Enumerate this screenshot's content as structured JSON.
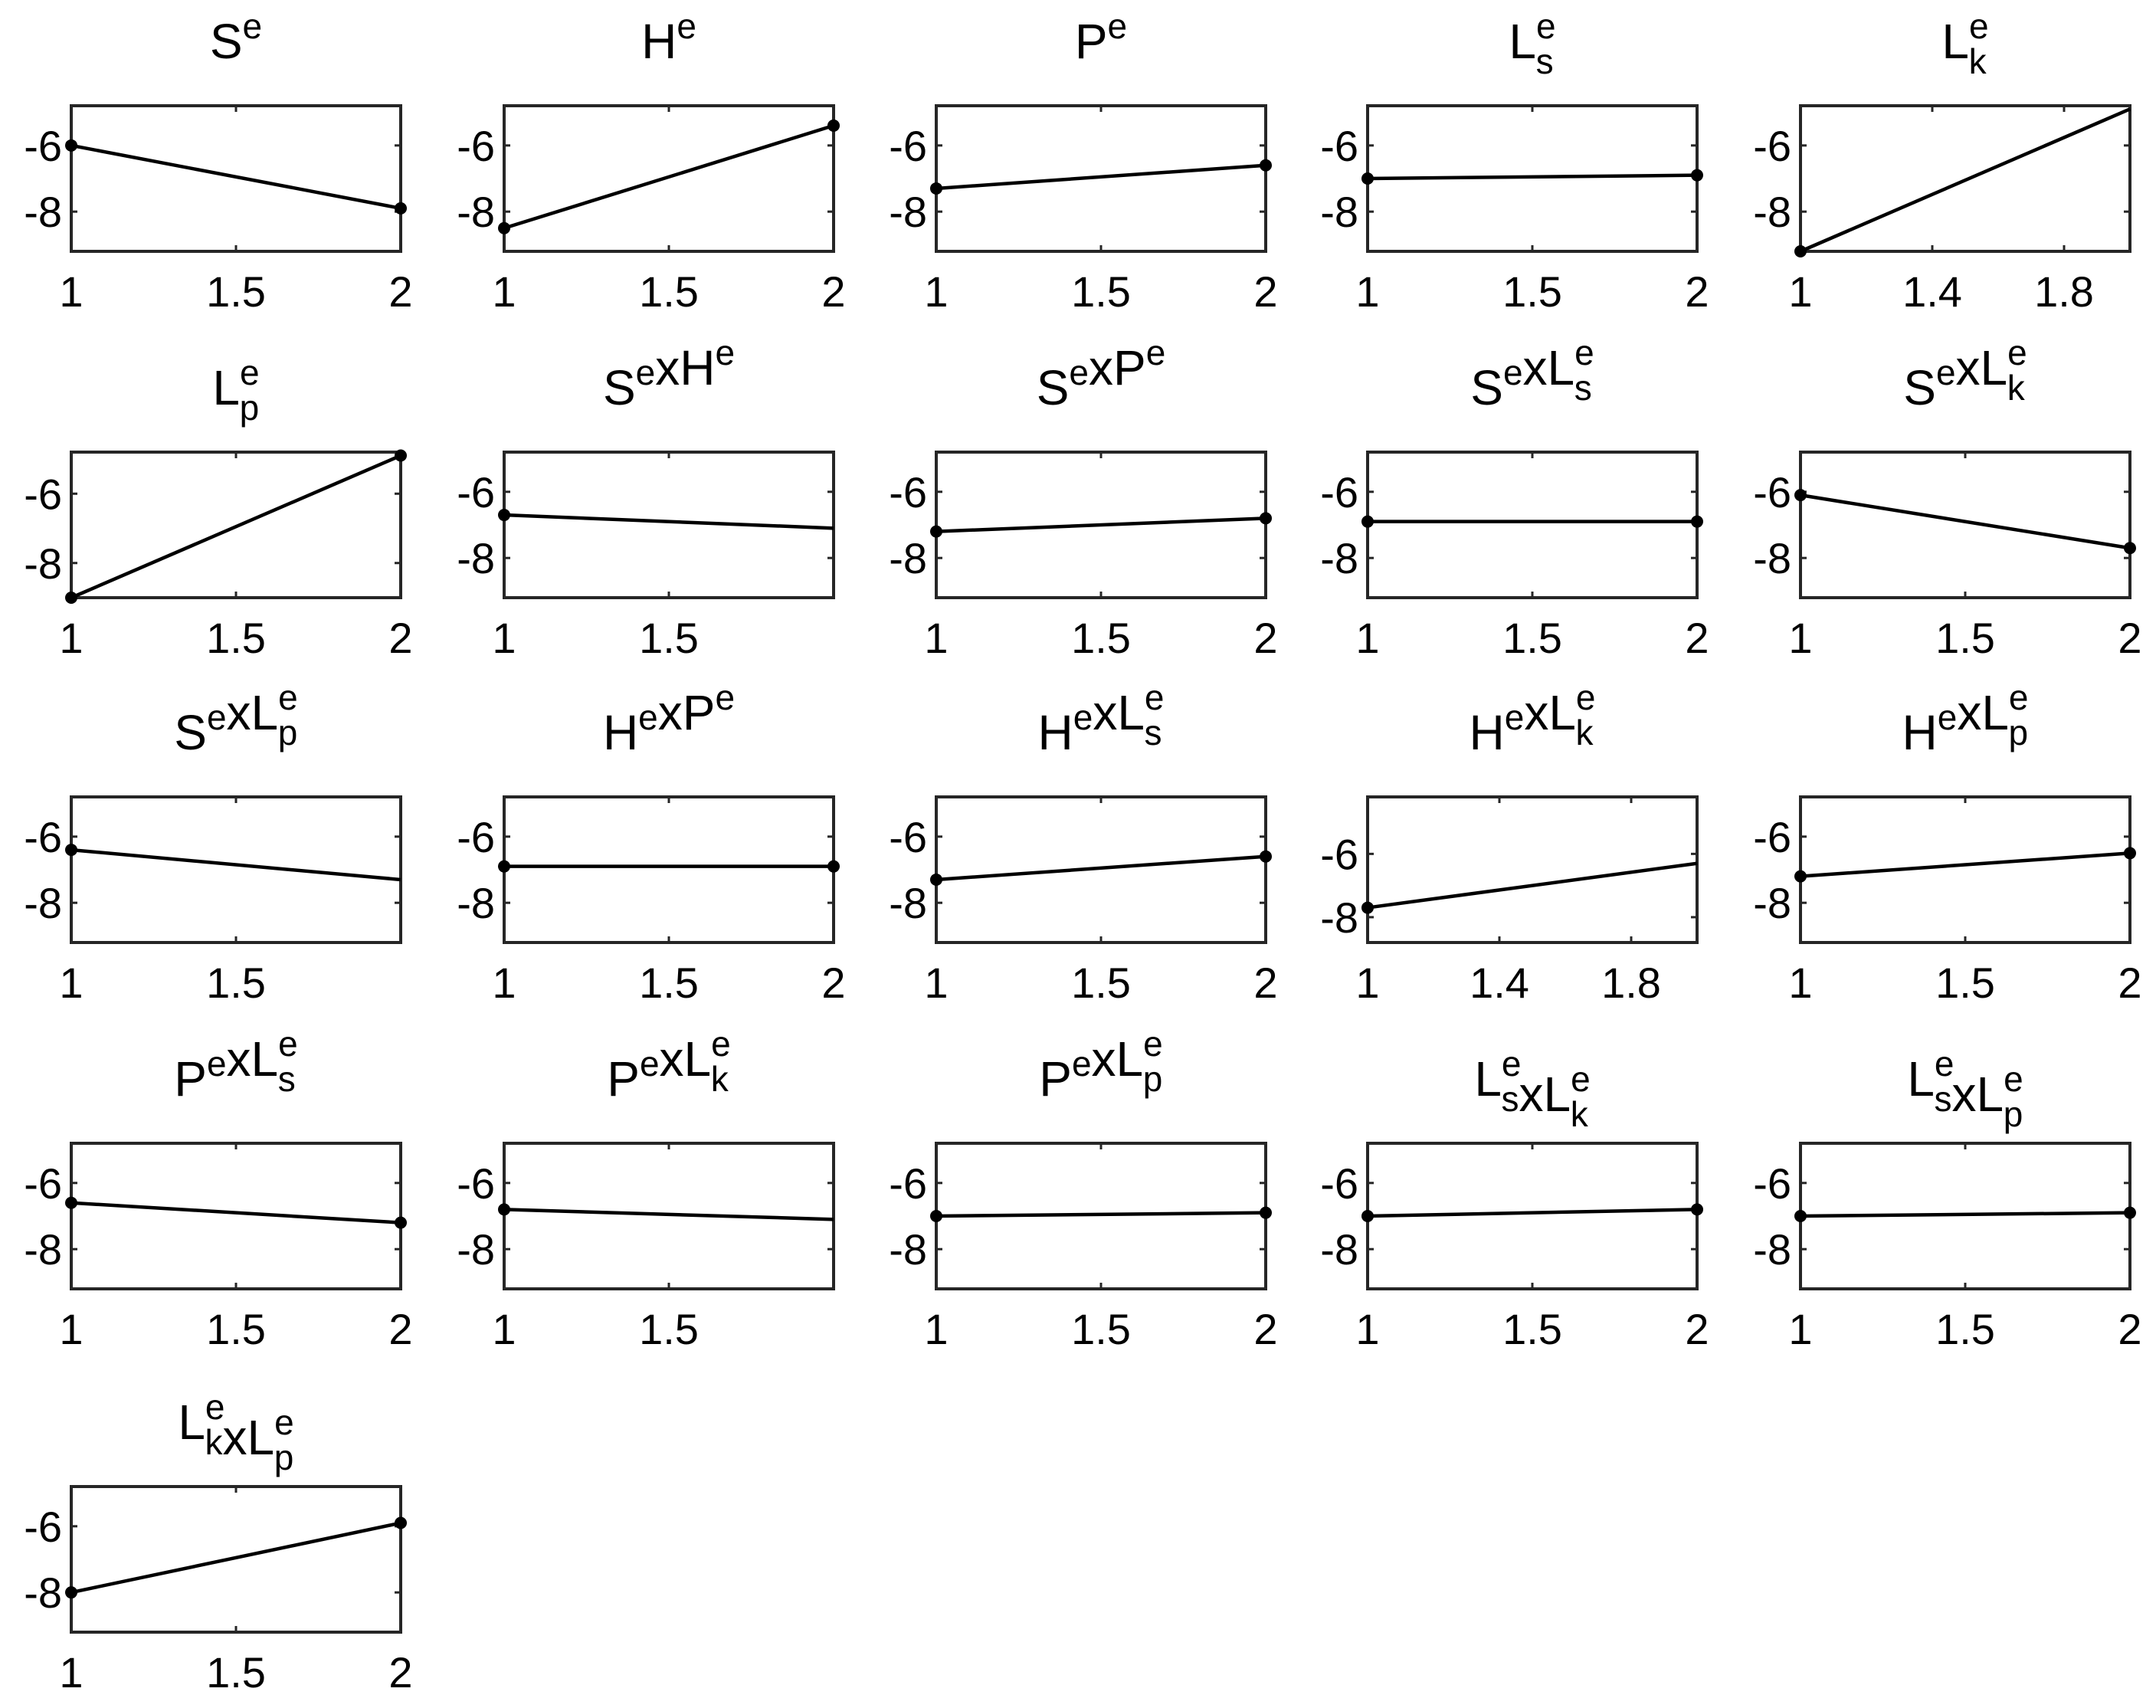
{
  "chart_data": [
    {
      "type": "line",
      "title": [
        [
          "S",
          "e",
          ""
        ]
      ],
      "x": [
        1,
        2
      ],
      "values": [
        -6.0,
        -7.9
      ],
      "xlim": [
        1,
        2
      ],
      "ylim": [
        -9.2,
        -4.8
      ],
      "xticks": [
        "1",
        "1.5",
        "2"
      ],
      "yticks": [
        "-6",
        "-8"
      ],
      "markers": [
        true,
        true
      ],
      "grid": false
    },
    {
      "type": "line",
      "title": [
        [
          "H",
          "e",
          ""
        ]
      ],
      "x": [
        1,
        2
      ],
      "values": [
        -8.5,
        -5.4
      ],
      "xlim": [
        1,
        2
      ],
      "ylim": [
        -9.2,
        -4.8
      ],
      "xticks": [
        "1",
        "1.5",
        "2"
      ],
      "yticks": [
        "-6",
        "-8"
      ],
      "markers": [
        true,
        true
      ],
      "grid": false
    },
    {
      "type": "line",
      "title": [
        [
          "P",
          "e",
          ""
        ]
      ],
      "x": [
        1,
        2
      ],
      "values": [
        -7.3,
        -6.6
      ],
      "xlim": [
        1,
        2
      ],
      "ylim": [
        -9.2,
        -4.8
      ],
      "xticks": [
        "1",
        "1.5",
        "2"
      ],
      "yticks": [
        "-6",
        "-8"
      ],
      "markers": [
        true,
        true
      ],
      "grid": false
    },
    {
      "type": "line",
      "title": [
        [
          "L",
          "e",
          "s"
        ]
      ],
      "x": [
        1,
        2
      ],
      "values": [
        -7.0,
        -6.9
      ],
      "xlim": [
        1,
        2
      ],
      "ylim": [
        -9.2,
        -4.8
      ],
      "xticks": [
        "1",
        "1.5",
        "2"
      ],
      "yticks": [
        "-6",
        "-8"
      ],
      "markers": [
        true,
        true
      ],
      "grid": false
    },
    {
      "type": "line",
      "title": [
        [
          "L",
          "e",
          "k"
        ]
      ],
      "x": [
        1,
        2
      ],
      "values": [
        -9.2,
        -4.9
      ],
      "xlim": [
        1,
        2
      ],
      "ylim": [
        -9.2,
        -4.8
      ],
      "xticks": [
        "1",
        "1.4",
        "1.8"
      ],
      "yticks": [
        "-6",
        "-8"
      ],
      "markers": [
        true,
        false
      ],
      "grid": false
    },
    {
      "type": "line",
      "title": [
        [
          "L",
          "e",
          "p"
        ]
      ],
      "x": [
        1,
        2
      ],
      "values": [
        -9.0,
        -4.9
      ],
      "xlim": [
        1,
        2
      ],
      "ylim": [
        -9.0,
        -4.8
      ],
      "xticks": [
        "1",
        "1.5",
        "2"
      ],
      "yticks": [
        "-6",
        "-8"
      ],
      "markers": [
        true,
        true
      ],
      "grid": false
    },
    {
      "type": "line",
      "title": [
        [
          "S",
          "e",
          ""
        ],
        [
          "xH",
          "e",
          ""
        ]
      ],
      "x": [
        1,
        2
      ],
      "values": [
        -6.7,
        -7.1
      ],
      "xlim": [
        1,
        2
      ],
      "ylim": [
        -9.2,
        -4.8
      ],
      "xticks": [
        "1",
        "1.5"
      ],
      "yticks": [
        "-6",
        "-8"
      ],
      "markers": [
        true,
        false
      ],
      "grid": false
    },
    {
      "type": "line",
      "title": [
        [
          "S",
          "e",
          ""
        ],
        [
          "xP",
          "e",
          ""
        ]
      ],
      "x": [
        1,
        2
      ],
      "values": [
        -7.2,
        -6.8
      ],
      "xlim": [
        1,
        2
      ],
      "ylim": [
        -9.2,
        -4.8
      ],
      "xticks": [
        "1",
        "1.5",
        "2"
      ],
      "yticks": [
        "-6",
        "-8"
      ],
      "markers": [
        true,
        true
      ],
      "grid": false
    },
    {
      "type": "line",
      "title": [
        [
          "S",
          "e",
          ""
        ],
        [
          "xL",
          "e",
          "s"
        ]
      ],
      "x": [
        1,
        2
      ],
      "values": [
        -6.9,
        -6.9
      ],
      "xlim": [
        1,
        2
      ],
      "ylim": [
        -9.2,
        -4.8
      ],
      "xticks": [
        "1",
        "1.5",
        "2"
      ],
      "yticks": [
        "-6",
        "-8"
      ],
      "markers": [
        true,
        true
      ],
      "grid": false
    },
    {
      "type": "line",
      "title": [
        [
          "S",
          "e",
          ""
        ],
        [
          "xL",
          "e",
          "k"
        ]
      ],
      "x": [
        1,
        2
      ],
      "values": [
        -6.1,
        -7.7
      ],
      "xlim": [
        1,
        2
      ],
      "ylim": [
        -9.2,
        -4.8
      ],
      "xticks": [
        "1",
        "1.5",
        "2"
      ],
      "yticks": [
        "-6",
        "-8"
      ],
      "markers": [
        true,
        true
      ],
      "grid": false
    },
    {
      "type": "line",
      "title": [
        [
          "S",
          "e",
          ""
        ],
        [
          "xL",
          "e",
          "p"
        ]
      ],
      "x": [
        1,
        2
      ],
      "values": [
        -6.4,
        -7.3
      ],
      "xlim": [
        1,
        2
      ],
      "ylim": [
        -9.2,
        -4.8
      ],
      "xticks": [
        "1",
        "1.5"
      ],
      "yticks": [
        "-6",
        "-8"
      ],
      "markers": [
        true,
        false
      ],
      "grid": false
    },
    {
      "type": "line",
      "title": [
        [
          "H",
          "e",
          ""
        ],
        [
          "xP",
          "e",
          ""
        ]
      ],
      "x": [
        1,
        2
      ],
      "values": [
        -6.9,
        -6.9
      ],
      "xlim": [
        1,
        2
      ],
      "ylim": [
        -9.2,
        -4.8
      ],
      "xticks": [
        "1",
        "1.5",
        "2"
      ],
      "yticks": [
        "-6",
        "-8"
      ],
      "markers": [
        true,
        true
      ],
      "grid": false
    },
    {
      "type": "line",
      "title": [
        [
          "H",
          "e",
          ""
        ],
        [
          "xL",
          "e",
          "s"
        ]
      ],
      "x": [
        1,
        2
      ],
      "values": [
        -7.3,
        -6.6
      ],
      "xlim": [
        1,
        2
      ],
      "ylim": [
        -9.2,
        -4.8
      ],
      "xticks": [
        "1",
        "1.5",
        "2"
      ],
      "yticks": [
        "-6",
        "-8"
      ],
      "markers": [
        true,
        true
      ],
      "grid": false
    },
    {
      "type": "line",
      "title": [
        [
          "H",
          "e",
          ""
        ],
        [
          "xL",
          "e",
          "k"
        ]
      ],
      "x": [
        1,
        2
      ],
      "values": [
        -7.7,
        -6.3
      ],
      "xlim": [
        1,
        2
      ],
      "ylim": [
        -8.8,
        -4.2
      ],
      "xticks": [
        "1",
        "1.4",
        "1.8"
      ],
      "yticks": [
        "-6",
        "-8"
      ],
      "markers": [
        true,
        false
      ],
      "grid": false
    },
    {
      "type": "line",
      "title": [
        [
          "H",
          "e",
          ""
        ],
        [
          "xL",
          "e",
          "p"
        ]
      ],
      "x": [
        1,
        2
      ],
      "values": [
        -7.2,
        -6.5
      ],
      "xlim": [
        1,
        2
      ],
      "ylim": [
        -9.2,
        -4.8
      ],
      "xticks": [
        "1",
        "1.5",
        "2"
      ],
      "yticks": [
        "-6",
        "-8"
      ],
      "markers": [
        true,
        true
      ],
      "grid": false
    },
    {
      "type": "line",
      "title": [
        [
          "P",
          "e",
          ""
        ],
        [
          "xL",
          "e",
          "s"
        ]
      ],
      "x": [
        1,
        2
      ],
      "values": [
        -6.6,
        -7.2
      ],
      "xlim": [
        1,
        2
      ],
      "ylim": [
        -9.2,
        -4.8
      ],
      "xticks": [
        "1",
        "1.5",
        "2"
      ],
      "yticks": [
        "-6",
        "-8"
      ],
      "markers": [
        true,
        true
      ],
      "grid": false
    },
    {
      "type": "line",
      "title": [
        [
          "P",
          "e",
          ""
        ],
        [
          "xL",
          "e",
          "k"
        ]
      ],
      "x": [
        1,
        2
      ],
      "values": [
        -6.8,
        -7.1
      ],
      "xlim": [
        1,
        2
      ],
      "ylim": [
        -9.2,
        -4.8
      ],
      "xticks": [
        "1",
        "1.5"
      ],
      "yticks": [
        "-6",
        "-8"
      ],
      "markers": [
        true,
        false
      ],
      "grid": false
    },
    {
      "type": "line",
      "title": [
        [
          "P",
          "e",
          ""
        ],
        [
          "xL",
          "e",
          "p"
        ]
      ],
      "x": [
        1,
        2
      ],
      "values": [
        -7.0,
        -6.9
      ],
      "xlim": [
        1,
        2
      ],
      "ylim": [
        -9.2,
        -4.8
      ],
      "xticks": [
        "1",
        "1.5",
        "2"
      ],
      "yticks": [
        "-6",
        "-8"
      ],
      "markers": [
        true,
        true
      ],
      "grid": false
    },
    {
      "type": "line",
      "title": [
        [
          "L",
          "e",
          "s"
        ],
        [
          "xL",
          "e",
          "k"
        ]
      ],
      "x": [
        1,
        2
      ],
      "values": [
        -7.0,
        -6.8
      ],
      "xlim": [
        1,
        2
      ],
      "ylim": [
        -9.2,
        -4.8
      ],
      "xticks": [
        "1",
        "1.5",
        "2"
      ],
      "yticks": [
        "-6",
        "-8"
      ],
      "markers": [
        true,
        true
      ],
      "grid": false
    },
    {
      "type": "line",
      "title": [
        [
          "L",
          "e",
          "s"
        ],
        [
          "xL",
          "e",
          "p"
        ]
      ],
      "x": [
        1,
        2
      ],
      "values": [
        -7.0,
        -6.9
      ],
      "xlim": [
        1,
        2
      ],
      "ylim": [
        -9.2,
        -4.8
      ],
      "xticks": [
        "1",
        "1.5",
        "2"
      ],
      "yticks": [
        "-6",
        "-8"
      ],
      "markers": [
        true,
        true
      ],
      "grid": false
    },
    {
      "type": "line",
      "title": [
        [
          "L",
          "e",
          "k"
        ],
        [
          "xL",
          "e",
          "p"
        ]
      ],
      "x": [
        1,
        2
      ],
      "values": [
        -8.0,
        -5.9
      ],
      "xlim": [
        1,
        2
      ],
      "ylim": [
        -9.2,
        -4.8
      ],
      "xticks": [
        "1",
        "1.5",
        "2"
      ],
      "yticks": [
        "-6",
        "-8"
      ],
      "markers": [
        true,
        true
      ],
      "grid": false
    }
  ]
}
